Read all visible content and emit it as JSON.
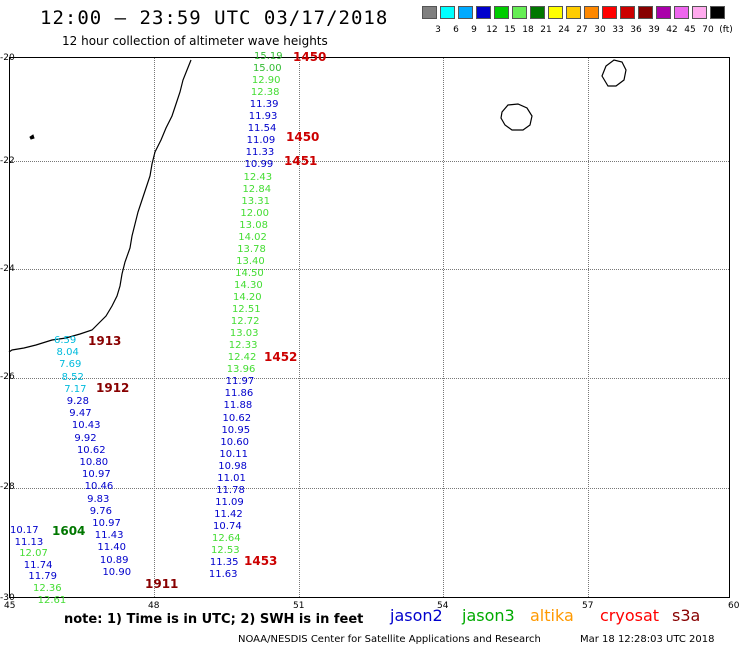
{
  "title": "12:00 – 23:59 UTC 03/17/2018",
  "subtitle": "12 hour collection of altimeter wave heights",
  "legend": {
    "colors": [
      "#808080",
      "#00ffff",
      "#00aaff",
      "#0000cc",
      "#00cc00",
      "#66ee55",
      "#007700",
      "#ffff00",
      "#ffcc00",
      "#ff8800",
      "#ff0000",
      "#cc0000",
      "#880000",
      "#aa00aa",
      "#ee66ee",
      "#ffaaee",
      "#000000"
    ],
    "labels": [
      "3",
      "6",
      "9",
      "12",
      "15",
      "18",
      "21",
      "24",
      "27",
      "30",
      "33",
      "36",
      "39",
      "42",
      "45",
      "70",
      "(ft)"
    ]
  },
  "axes": {
    "y_labels": [
      "-20",
      "-22",
      "-24",
      "-26",
      "-28",
      "-30"
    ],
    "x_labels": [
      "45",
      "48",
      "51",
      "54",
      "57",
      "60"
    ]
  },
  "tracks": {
    "track_a": [
      "15.19",
      "15.00",
      "12.90",
      "12.38",
      "11.39",
      "11.93",
      "11.54",
      "11.09",
      "11.33",
      "10.99",
      "12.43",
      "12.84",
      "13.31",
      "12.00",
      "13.08",
      "14.02",
      "13.78",
      "13.40",
      "14.50",
      "14.30",
      "14.20",
      "12.51",
      "12.72",
      "13.03",
      "12.33",
      "12.42",
      "13.96",
      "11.97",
      "11.86",
      "11.88",
      "10.62",
      "10.95",
      "10.60",
      "10.11",
      "10.98",
      "11.01",
      "11.78",
      "11.09",
      "11.42",
      "10.74",
      "12.64",
      "12.53",
      "11.35",
      "11.63"
    ],
    "track_b": [
      "6.59",
      "8.04",
      "7.69",
      "8.52",
      "7.17",
      "9.28",
      "9.47",
      "10.43",
      "9.92",
      "10.62",
      "10.80",
      "10.97",
      "10.46",
      "9.83",
      "9.76",
      "10.97",
      "11.43",
      "11.40",
      "10.89",
      "10.90"
    ],
    "track_c": [
      "10.17",
      "11.13",
      "12.07",
      "11.74",
      "11.79",
      "12.36",
      "12.61"
    ]
  },
  "times": {
    "t1": "1450",
    "t2": "1450",
    "t3": "1451",
    "t4": "1913",
    "t5": "1452",
    "t6": "1912",
    "t7": "1604",
    "t8": "1453",
    "t9": "1911"
  },
  "note": "note:  1) Time is in UTC;  2) SWH is in feet",
  "satellites": {
    "jason2": "jason2",
    "jason3": "jason3",
    "altika": "altika",
    "cryosat": "cryosat",
    "s3a": "s3a"
  },
  "sat_colors": {
    "jason2": "#0000cc",
    "jason3": "#00aa00",
    "altika": "#ff9900",
    "cryosat": "#ff0000",
    "s3a": "#880000"
  },
  "credit": "NOAA/NESDIS Center for Satellite Applications and Research",
  "credit_date": "Mar 18 12:28:03 UTC 2018"
}
